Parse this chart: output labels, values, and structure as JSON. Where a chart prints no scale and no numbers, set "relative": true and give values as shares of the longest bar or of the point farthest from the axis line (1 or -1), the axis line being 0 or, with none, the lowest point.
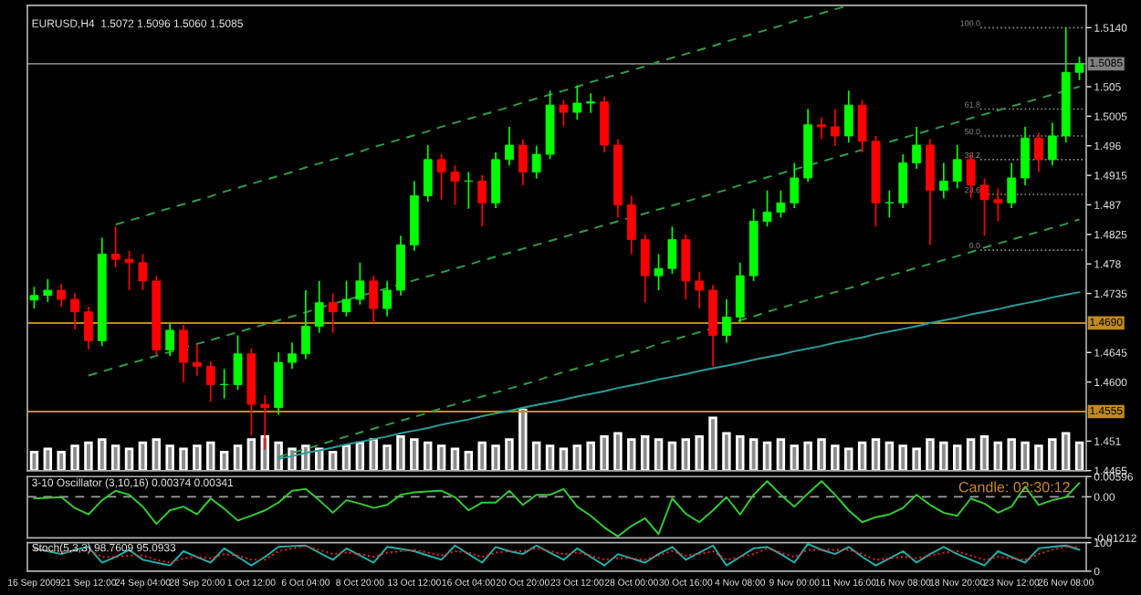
{
  "chart_data": [
    {
      "type": "candlestick",
      "title": "EURUSD,H4  1.5072 1.5096 1.5060 1.5085",
      "categories": [
        null,
        null,
        null,
        null,
        null,
        null,
        null,
        null,
        null,
        null,
        null,
        null,
        null,
        null,
        null,
        null,
        null,
        null,
        null,
        null,
        null,
        null,
        null,
        null,
        null,
        null,
        null,
        null,
        null,
        null,
        null,
        null,
        null,
        null,
        null,
        null,
        null,
        null,
        null,
        null,
        null,
        null,
        null,
        null,
        null,
        null,
        null,
        null,
        null,
        null,
        null,
        null,
        null,
        null,
        null,
        null,
        null,
        null,
        null,
        null,
        null,
        null,
        null,
        null,
        null,
        null,
        null,
        null,
        null,
        null,
        null,
        null,
        null,
        null,
        null,
        null,
        null,
        null
      ],
      "ohlc": [
        [
          1.4725,
          1.4745,
          1.4712,
          1.4732
        ],
        [
          1.4732,
          1.4757,
          1.4722,
          1.474
        ],
        [
          1.474,
          1.475,
          1.4715,
          1.4726
        ],
        [
          1.4726,
          1.4735,
          1.468,
          1.4707
        ],
        [
          1.4707,
          1.4715,
          1.465,
          1.4663
        ],
        [
          1.4663,
          1.482,
          1.4655,
          1.4795
        ],
        [
          1.4795,
          1.4837,
          1.4775,
          1.4787
        ],
        [
          1.4787,
          1.48,
          1.474,
          1.4782
        ],
        [
          1.4782,
          1.4795,
          1.474,
          1.4754
        ],
        [
          1.4754,
          1.4762,
          1.464,
          1.4649
        ],
        [
          1.4649,
          1.469,
          1.464,
          1.4679
        ],
        [
          1.4679,
          1.4687,
          1.46,
          1.463
        ],
        [
          1.463,
          1.4657,
          1.461,
          1.4624
        ],
        [
          1.4624,
          1.4632,
          1.457,
          1.4596
        ],
        [
          1.4596,
          1.462,
          1.4575,
          1.4596
        ],
        [
          1.4596,
          1.4671,
          1.4588,
          1.4643
        ],
        [
          1.4643,
          1.4651,
          1.4519,
          1.4566
        ],
        [
          1.4566,
          1.458,
          1.4497,
          1.4561
        ],
        [
          1.4561,
          1.4645,
          1.455,
          1.463
        ],
        [
          1.463,
          1.466,
          1.462,
          1.4643
        ],
        [
          1.4643,
          1.474,
          1.4635,
          1.4685
        ],
        [
          1.4685,
          1.4754,
          1.4675,
          1.4721
        ],
        [
          1.4721,
          1.4735,
          1.4675,
          1.4707
        ],
        [
          1.4707,
          1.4754,
          1.47,
          1.4726
        ],
        [
          1.4726,
          1.4782,
          1.4718,
          1.4754
        ],
        [
          1.4754,
          1.4762,
          1.469,
          1.4712
        ],
        [
          1.4712,
          1.4754,
          1.47,
          1.474
        ],
        [
          1.474,
          1.4823,
          1.4732,
          1.4809
        ],
        [
          1.4809,
          1.4906,
          1.48,
          1.4884
        ],
        [
          1.4884,
          1.4961,
          1.4875,
          1.4939
        ],
        [
          1.4939,
          1.4947,
          1.4878,
          1.492
        ],
        [
          1.492,
          1.493,
          1.487,
          1.4906
        ],
        [
          1.4906,
          1.492,
          1.4864,
          1.4906
        ],
        [
          1.4906,
          1.4915,
          1.4837,
          1.4873
        ],
        [
          1.4873,
          1.495,
          1.4865,
          1.4939
        ],
        [
          1.4939,
          1.4989,
          1.493,
          1.4961
        ],
        [
          1.4961,
          1.497,
          1.49,
          1.492
        ],
        [
          1.492,
          1.496,
          1.491,
          1.4947
        ],
        [
          1.4947,
          1.5044,
          1.494,
          1.5022
        ],
        [
          1.5022,
          1.503,
          1.499,
          1.5011
        ],
        [
          1.5011,
          1.5052,
          1.5,
          1.5025
        ],
        [
          1.5025,
          1.504,
          1.501,
          1.5027
        ],
        [
          1.5027,
          1.5035,
          1.495,
          1.4961
        ],
        [
          1.4961,
          1.497,
          1.4851,
          1.487
        ],
        [
          1.487,
          1.4884,
          1.4795,
          1.4817
        ],
        [
          1.4817,
          1.4825,
          1.4721,
          1.4762
        ],
        [
          1.4762,
          1.4795,
          1.474,
          1.4773
        ],
        [
          1.4773,
          1.4837,
          1.4765,
          1.4817
        ],
        [
          1.4817,
          1.4825,
          1.4726,
          1.4754
        ],
        [
          1.4754,
          1.4768,
          1.4712,
          1.474
        ],
        [
          1.474,
          1.4748,
          1.4624,
          1.4671
        ],
        [
          1.4671,
          1.4726,
          1.466,
          1.4699
        ],
        [
          1.4699,
          1.4782,
          1.469,
          1.4762
        ],
        [
          1.4762,
          1.4864,
          1.4754,
          1.4845
        ],
        [
          1.4845,
          1.4892,
          1.4837,
          1.4859
        ],
        [
          1.4859,
          1.4892,
          1.4851,
          1.4873
        ],
        [
          1.4873,
          1.4934,
          1.4865,
          1.4911
        ],
        [
          1.4911,
          1.5016,
          1.4905,
          1.4992
        ],
        [
          1.4992,
          1.5003,
          1.497,
          1.4989
        ],
        [
          1.4989,
          1.5016,
          1.496,
          1.4975
        ],
        [
          1.4975,
          1.5044,
          1.4965,
          1.5022
        ],
        [
          1.5022,
          1.503,
          1.495,
          1.4967
        ],
        [
          1.4967,
          1.4975,
          1.4837,
          1.4873
        ],
        [
          1.4873,
          1.4892,
          1.4851,
          1.4873
        ],
        [
          1.4873,
          1.4947,
          1.4865,
          1.4934
        ],
        [
          1.4934,
          1.4989,
          1.4925,
          1.4961
        ],
        [
          1.4961,
          1.497,
          1.4809,
          1.4892
        ],
        [
          1.4892,
          1.4934,
          1.488,
          1.4906
        ],
        [
          1.4906,
          1.4961,
          1.4895,
          1.4939
        ],
        [
          1.4939,
          1.4947,
          1.488,
          1.49
        ],
        [
          1.49,
          1.491,
          1.4823,
          1.4878
        ],
        [
          1.4878,
          1.4895,
          1.4845,
          1.4873
        ],
        [
          1.4873,
          1.4934,
          1.4865,
          1.4911
        ],
        [
          1.4911,
          1.4989,
          1.49,
          1.4972
        ],
        [
          1.4972,
          1.498,
          1.492,
          1.4939
        ],
        [
          1.4939,
          1.4995,
          1.493,
          1.4975
        ],
        [
          1.4975,
          1.514,
          1.4965,
          1.5072
        ],
        [
          1.5072,
          1.5096,
          1.506,
          1.5085
        ]
      ],
      "colors": [
        "#00ff00",
        "#00ff00",
        "#ff0000",
        "#ff0000",
        "#ff0000",
        "#00ff00",
        "#ff0000",
        "#ff0000",
        "#ff0000",
        "#ff0000",
        "#00ff00",
        "#ff0000",
        "#ff0000",
        "#ff0000",
        "#00ff00",
        "#00ff00",
        "#ff0000",
        "#ff0000",
        "#00ff00",
        "#00ff00",
        "#00ff00",
        "#00ff00",
        "#ff0000",
        "#00ff00",
        "#00ff00",
        "#ff0000",
        "#00ff00",
        "#00ff00",
        "#00ff00",
        "#00ff00",
        "#ff0000",
        "#ff0000",
        "#00ff00",
        "#ff0000",
        "#00ff00",
        "#00ff00",
        "#ff0000",
        "#00ff00",
        "#00ff00",
        "#ff0000",
        "#00ff00",
        "#00ff00",
        "#ff0000",
        "#ff0000",
        "#ff0000",
        "#ff0000",
        "#00ff00",
        "#00ff00",
        "#ff0000",
        "#ff0000",
        "#ff0000",
        "#00ff00",
        "#00ff00",
        "#00ff00",
        "#00ff00",
        "#00ff00",
        "#00ff00",
        "#00ff00",
        "#ff0000",
        "#ff0000",
        "#00ff00",
        "#ff0000",
        "#ff0000",
        "#00ff00",
        "#00ff00",
        "#00ff00",
        "#ff0000",
        "#00ff00",
        "#00ff00",
        "#ff0000",
        "#ff0000",
        "#ff0000",
        "#00ff00",
        "#00ff00",
        "#ff0000",
        "#00ff00",
        "#00ff00",
        "#00ff00"
      ],
      "series": [
        {
          "type": "line",
          "color": "#2e9e4a",
          "line_style": "dashed",
          "values": [
            null,
            null,
            null,
            null,
            null,
            null,
            1.484,
            1.4846,
            1.4852,
            1.4859,
            1.4865,
            1.4871,
            1.4877,
            1.4883,
            1.489,
            1.4896,
            1.4902,
            1.4908,
            1.4914,
            1.492,
            1.4927,
            1.4933,
            1.4939,
            1.4945,
            1.4951,
            1.4958,
            1.4964,
            1.497,
            1.4976,
            1.4982,
            1.4989,
            1.4995,
            1.5001,
            1.5007,
            1.5013,
            1.5019,
            1.5026,
            1.5032,
            1.5038,
            1.5044,
            1.505,
            1.5057,
            1.5063,
            1.5069,
            1.5075,
            1.5081,
            1.5088,
            1.5094,
            1.51,
            1.5106,
            1.5112,
            1.5119,
            1.5125,
            1.5131,
            1.5137,
            1.5143,
            1.515,
            1.5156,
            1.5162,
            1.5168,
            1.5174,
            null,
            null,
            null,
            null,
            null,
            null,
            null,
            null,
            null,
            null,
            null,
            null,
            null,
            null,
            null,
            null,
            null
          ]
        },
        {
          "type": "line",
          "color": "#2e9e4a",
          "line_style": "dashed",
          "values": [
            null,
            null,
            null,
            null,
            1.461,
            1.4616,
            1.4622,
            1.4628,
            1.4634,
            1.464,
            1.4646,
            1.4652,
            1.4658,
            1.4664,
            1.467,
            1.4676,
            1.4682,
            1.4688,
            1.4694,
            1.47,
            1.4706,
            1.4713,
            1.4719,
            1.4725,
            1.4731,
            1.4737,
            1.4743,
            1.4749,
            1.4755,
            1.4761,
            1.4767,
            1.4773,
            1.4779,
            1.4785,
            1.4791,
            1.4797,
            1.4803,
            1.4809,
            1.4815,
            1.4821,
            1.4827,
            1.4833,
            1.4839,
            1.4845,
            1.4851,
            1.4857,
            1.4863,
            1.4869,
            1.4875,
            1.4881,
            1.4887,
            1.4893,
            1.49,
            1.4906,
            1.4912,
            1.4918,
            1.4924,
            1.493,
            1.4936,
            1.4942,
            1.4948,
            1.4954,
            null,
            1.4966,
            1.4972,
            1.4978,
            1.4984,
            1.499,
            1.4996,
            1.5002,
            1.5008,
            1.5014,
            1.502,
            1.5026,
            1.5032,
            1.5038,
            1.5044,
            1.505
          ]
        },
        {
          "type": "line",
          "color": "#2e9e4a",
          "line_style": "dashed",
          "values": [
            null,
            null,
            null,
            null,
            null,
            null,
            null,
            null,
            null,
            null,
            null,
            null,
            null,
            null,
            null,
            null,
            null,
            null,
            1.4486,
            1.4492,
            1.4498,
            1.4504,
            1.4511,
            1.4517,
            1.4523,
            1.4529,
            1.4535,
            1.4541,
            1.4547,
            1.4553,
            1.456,
            1.4566,
            1.4572,
            1.4578,
            1.4584,
            1.459,
            1.4596,
            1.4602,
            1.4609,
            1.4615,
            1.4621,
            1.4627,
            1.4633,
            1.4639,
            1.4645,
            1.4651,
            1.4658,
            1.4664,
            1.467,
            1.4676,
            1.4682,
            1.4688,
            1.4694,
            1.47,
            1.4707,
            1.4713,
            1.4719,
            1.4725,
            1.4731,
            1.4737,
            1.4743,
            1.4749,
            1.4756,
            1.4762,
            1.4768,
            1.4774,
            1.478,
            1.4786,
            1.4792,
            1.4798,
            1.4805,
            1.4811,
            1.4817,
            1.4823,
            1.4829,
            1.4835,
            1.4841,
            1.4848
          ]
        },
        {
          "type": "line",
          "color": "#2a9d9d",
          "line_style": "solid",
          "values": [
            null,
            null,
            null,
            null,
            null,
            null,
            null,
            null,
            null,
            null,
            null,
            null,
            null,
            null,
            null,
            null,
            null,
            null,
            1.4483,
            1.4487,
            1.4492,
            1.4496,
            1.45,
            1.4505,
            1.4509,
            1.4513,
            1.4517,
            1.4522,
            1.4526,
            1.453,
            1.4535,
            1.4539,
            1.4543,
            1.4548,
            1.4552,
            1.4556,
            1.4561,
            1.4565,
            1.4569,
            1.4573,
            1.4578,
            1.4582,
            1.4586,
            1.4591,
            1.4595,
            1.4599,
            1.4604,
            1.4608,
            1.4612,
            1.4617,
            1.4621,
            1.4625,
            1.4629,
            1.4634,
            1.4638,
            1.4642,
            1.4647,
            1.4651,
            1.4655,
            1.466,
            1.4664,
            1.4668,
            1.4673,
            1.4677,
            1.4681,
            1.4685,
            1.469,
            1.4694,
            1.4698,
            1.4703,
            1.4707,
            1.4711,
            1.4716,
            1.472,
            1.4724,
            1.4729,
            1.4733,
            1.4737
          ]
        }
      ],
      "ref_lines": [
        {
          "axis": "y",
          "value": 1.5085,
          "label": "1.5085",
          "color": "#808080"
        },
        {
          "axis": "y",
          "value": 1.469,
          "label": "1.4690",
          "color": "#c08a1e"
        },
        {
          "axis": "y",
          "value": 1.4555,
          "label": "1.4555",
          "color": "#c08a1e"
        },
        {
          "axis": "y",
          "value": 1.514,
          "color": "#8a8a8a",
          "line_style": "dotted"
        },
        {
          "axis": "y",
          "value": 1.5016,
          "color": "#8a8a8a",
          "line_style": "dotted"
        },
        {
          "axis": "y",
          "value": 1.4975,
          "color": "#8a8a8a",
          "line_style": "dotted"
        },
        {
          "axis": "y",
          "value": 1.4939,
          "color": "#8a8a8a",
          "line_style": "dotted"
        },
        {
          "axis": "y",
          "value": 1.4886,
          "color": "#8a8a8a",
          "line_style": "dotted"
        },
        {
          "axis": "y",
          "value": 1.4801,
          "color": "#8a8a8a",
          "line_style": "dotted"
        }
      ],
      "annotations": [
        "100.0",
        "61.8",
        "50.0",
        "38.2",
        "23.6",
        "0.0"
      ],
      "ylim": [
        1.4465,
        1.5174
      ],
      "yticks": [
        {
          "value": 1.514,
          "label": "1.5140"
        },
        1.505,
        1.5005,
        1.496,
        1.4915,
        1.487,
        1.4825,
        1.478,
        1.4735,
        1.4645,
        {
          "value": 1.46,
          "label": "1.4600"
        },
        1.451,
        1.4465
      ],
      "tick_labels": "y"
    },
    {
      "type": "bar",
      "relative": true,
      "color": "#8c8c8c",
      "categories": [
        null,
        null,
        null,
        null,
        null,
        null,
        null,
        null,
        null,
        null,
        null,
        null,
        null,
        null,
        null,
        null,
        null,
        null,
        null,
        null,
        null,
        null,
        null,
        null,
        null,
        null,
        null,
        null,
        null,
        null,
        null,
        null,
        null,
        null,
        null,
        null,
        null,
        null,
        null,
        null,
        null,
        null,
        null,
        null,
        null,
        null,
        null,
        null,
        null,
        null,
        null,
        null,
        null,
        null,
        null,
        null,
        null,
        null,
        null,
        null,
        null,
        null,
        null,
        null,
        null,
        null,
        null,
        null,
        null,
        null,
        null,
        null,
        null,
        null,
        null,
        null,
        null,
        null
      ],
      "values": [
        0.3,
        0.35,
        0.3,
        0.4,
        0.45,
        0.5,
        0.4,
        0.35,
        0.45,
        0.5,
        0.4,
        0.35,
        0.4,
        0.45,
        0.3,
        0.4,
        0.5,
        0.55,
        0.45,
        0.35,
        0.4,
        0.35,
        0.3,
        0.4,
        0.45,
        0.5,
        0.4,
        0.55,
        0.5,
        0.45,
        0.4,
        0.35,
        0.3,
        0.45,
        0.4,
        0.5,
        1.0,
        0.45,
        0.4,
        0.35,
        0.4,
        0.45,
        0.55,
        0.6,
        0.5,
        0.55,
        0.5,
        0.45,
        0.5,
        0.55,
        0.85,
        0.6,
        0.55,
        0.5,
        0.45,
        0.5,
        0.4,
        0.45,
        0.5,
        0.4,
        0.35,
        0.45,
        0.5,
        0.45,
        0.4,
        0.35,
        0.5,
        0.45,
        0.4,
        0.5,
        0.55,
        0.45,
        0.5,
        0.45,
        0.4,
        0.5,
        0.6,
        0.45
      ],
      "tick_labels": false
    },
    {
      "type": "line",
      "title": "3-10 Oscillator (3,10,16) 0.00374 0.00341",
      "categories": [
        null,
        null,
        null,
        null,
        null,
        null,
        null,
        null,
        null,
        null,
        null,
        null,
        null,
        null,
        null,
        null,
        null,
        null,
        null,
        null,
        null,
        null,
        null,
        null,
        null,
        null,
        null,
        null,
        null,
        null,
        null,
        null,
        null,
        null,
        null,
        null,
        null,
        null,
        null,
        null,
        null,
        null,
        null,
        null,
        null,
        null,
        null,
        null,
        null,
        null,
        null,
        null,
        null,
        null,
        null,
        null,
        null,
        null,
        null,
        null,
        null,
        null,
        null,
        null,
        null,
        null,
        null,
        null,
        null,
        null,
        null,
        null,
        null,
        null,
        null,
        null,
        null,
        null
      ],
      "series": [
        {
          "color": "#32cd32",
          "values": [
            -0.0005,
            -0.0003,
            -0.0001,
            -0.0033,
            -0.0052,
            -0.001,
            0.0018,
            0.0006,
            -0.0029,
            -0.008,
            -0.004,
            -0.0029,
            -0.0052,
            -0.0005,
            -0.0035,
            -0.007,
            -0.0056,
            -0.004,
            -0.0017,
            0.0018,
            0.0023,
            -0.001,
            -0.0047,
            -0.001,
            -0.002,
            -0.0033,
            -0.0024,
            0.0006,
            0.0013,
            0.0016,
            0.0018,
            -0.0001,
            -0.004,
            -0.0017,
            -0.0017,
            0.0018,
            -0.0024,
            0.0006,
            0.0006,
            0.0023,
            -0.0029,
            -0.0056,
            -0.009,
            -0.0117,
            -0.0086,
            -0.0063,
            -0.011,
            -0.0005,
            -0.005,
            -0.0075,
            -0.004,
            -0.0001,
            -0.0052,
            0.0006,
            0.0046,
            0.0006,
            -0.0029,
            0.001,
            0.0046,
            0.0006,
            -0.004,
            -0.0075,
            -0.006,
            -0.0052,
            -0.0033,
            0.0006,
            -0.0024,
            -0.0047,
            -0.0056,
            -0.0005,
            -0.002,
            -0.0047,
            -0.0029,
            0.003,
            -0.0024,
            -0.001,
            -0.0001,
            0.0041
          ]
        }
      ],
      "ref_lines": [
        {
          "axis": "y",
          "value": 0,
          "color": "#a0a0a0",
          "line_style": "dashed"
        }
      ],
      "annotations": [
        "Candle: 02:30:12"
      ],
      "ylim": [
        -0.01212,
        0.00596
      ],
      "yticks": [
        {
          "value": 0.00596,
          "label": "0.00596"
        },
        {
          "value": 0,
          "label": "0.00"
        },
        {
          "value": -0.01212,
          "label": "-0.01212"
        }
      ],
      "tick_labels": "y"
    },
    {
      "type": "line",
      "title": "Stoch(5,3,3) 98.7609 95.0933",
      "categories": [
        "16 Sep 2009",
        null,
        null,
        null,
        "21 Sep 12:00",
        null,
        null,
        null,
        "24 Sep 04:00",
        null,
        null,
        null,
        "28 Sep 20:00",
        null,
        null,
        null,
        "1 Oct 12:00",
        null,
        null,
        null,
        "6 Oct 04:00",
        null,
        null,
        null,
        "8 Oct 20:00",
        null,
        null,
        null,
        "13 Oct 12:00",
        null,
        null,
        null,
        "16 Oct 04:00",
        null,
        null,
        null,
        "20 Oct 20:00",
        null,
        null,
        null,
        "23 Oct 12:00",
        null,
        null,
        null,
        "28 Oct 00:00",
        null,
        null,
        null,
        "30 Oct 16:00",
        null,
        null,
        null,
        "4 Nov 08:00",
        null,
        null,
        null,
        "9 Nov 00:00",
        null,
        null,
        null,
        "11 Nov 16:00",
        null,
        null,
        null,
        "16 Nov 08:00",
        null,
        null,
        null,
        "18 Nov 20:00",
        null,
        null,
        null,
        "23 Nov 12:00",
        null,
        null,
        null,
        "26 Nov 08:00",
        null
      ],
      "series": [
        {
          "color": "#20b2aa",
          "line_style": "solid",
          "values": [
            80,
            70,
            60,
            75,
            85,
            30,
            50,
            75,
            40,
            30,
            20,
            70,
            50,
            30,
            80,
            50,
            20,
            50,
            85,
            88,
            90,
            65,
            40,
            80,
            55,
            30,
            85,
            78,
            70,
            55,
            40,
            90,
            60,
            30,
            85,
            70,
            60,
            90,
            65,
            40,
            80,
            50,
            20,
            60,
            45,
            30,
            60,
            85,
            40,
            65,
            90,
            20,
            50,
            80,
            85,
            60,
            30,
            95,
            75,
            60,
            85,
            50,
            20,
            45,
            70,
            30,
            60,
            85,
            60,
            40,
            20,
            70,
            50,
            30,
            80,
            85,
            90,
            75
          ]
        },
        {
          "color": "#ff2020",
          "line_style": "dotted",
          "values": [
            75,
            72,
            68,
            70,
            75,
            50,
            50,
            55,
            55,
            40,
            30,
            45,
            50,
            45,
            60,
            55,
            40,
            40,
            70,
            80,
            88,
            75,
            60,
            65,
            60,
            50,
            65,
            70,
            75,
            65,
            55,
            70,
            65,
            50,
            65,
            70,
            70,
            80,
            70,
            60,
            65,
            55,
            40,
            45,
            45,
            40,
            55,
            70,
            55,
            60,
            70,
            40,
            50,
            60,
            80,
            65,
            50,
            75,
            75,
            75,
            75,
            60,
            40,
            45,
            50,
            45,
            55,
            65,
            70,
            55,
            40,
            50,
            45,
            40,
            60,
            75,
            85,
            85
          ]
        }
      ],
      "ylim": [
        0,
        100
      ],
      "yticks": [
        0,
        100
      ]
    }
  ]
}
